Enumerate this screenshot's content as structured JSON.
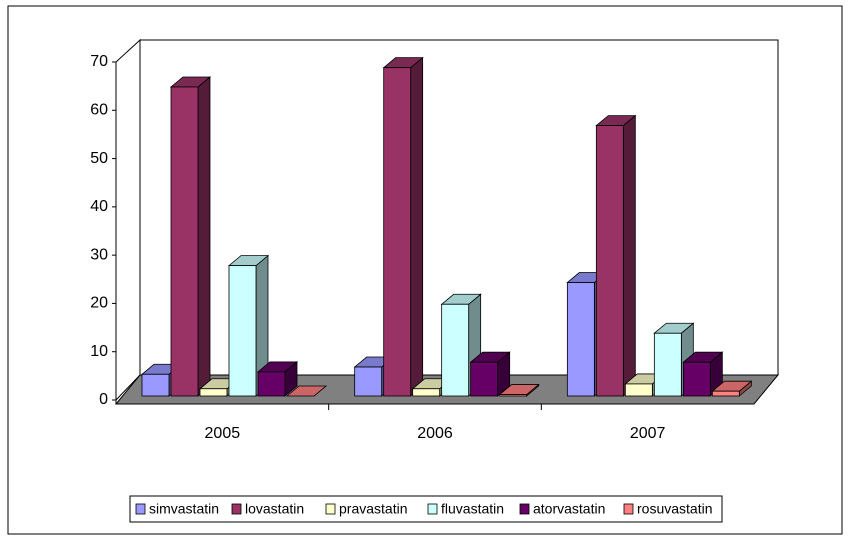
{
  "chart_data": {
    "type": "bar3d",
    "categories": [
      "2005",
      "2006",
      "2007"
    ],
    "series": [
      {
        "name": "simvastatin",
        "color": "#9999ff",
        "values": [
          4.5,
          6,
          23.5
        ]
      },
      {
        "name": "lovastatin",
        "color": "#993366",
        "values": [
          64,
          68,
          56
        ]
      },
      {
        "name": "pravastatin",
        "color": "#ffffcc",
        "values": [
          1.5,
          1.5,
          2.5
        ]
      },
      {
        "name": "fluvastatin",
        "color": "#ccffff",
        "values": [
          27,
          19,
          13
        ]
      },
      {
        "name": "atorvastatin",
        "color": "#660066",
        "values": [
          5,
          7,
          7
        ]
      },
      {
        "name": "rosuvastatin",
        "color": "#ff8080",
        "values": [
          0,
          0.3,
          1
        ]
      }
    ],
    "ylim": [
      0,
      70
    ],
    "yticks": [
      0,
      10,
      20,
      30,
      40,
      50,
      60,
      70
    ],
    "legend": "bottom"
  }
}
